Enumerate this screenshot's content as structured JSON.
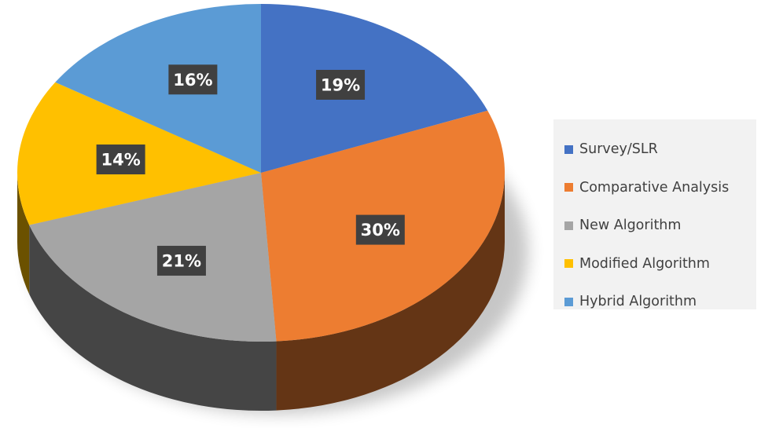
{
  "chart_data": {
    "type": "pie",
    "title": "",
    "style": "3d",
    "legend_position": "right",
    "categories": [
      "Survey/SLR",
      "Comparative Analysis",
      "New Algorithm",
      "Modified Algorithm",
      "Hybrid Algorithm"
    ],
    "values": [
      19,
      30,
      21,
      14,
      16
    ],
    "value_labels": [
      "19%",
      "30%",
      "21%",
      "14%",
      "16%"
    ],
    "colors": [
      "#4472c4",
      "#ed7d31",
      "#a5a5a5",
      "#ffc000",
      "#5b9bd5"
    ]
  }
}
